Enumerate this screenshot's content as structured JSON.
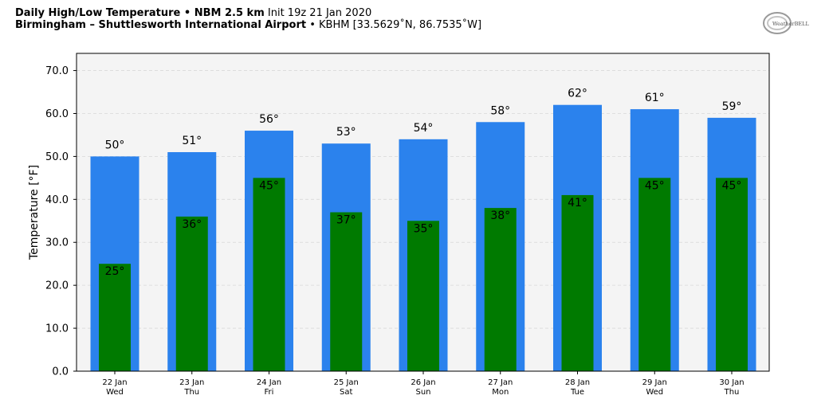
{
  "header": {
    "title_bold": "Daily High/Low Temperature • NBM 2.5 km",
    "title_init": "Init 19z 21 Jan 2020",
    "subtitle_bold": "Birmingham – Shuttlesworth International Airport",
    "subtitle_rest": "• KBHM [33.5629˚N, 86.7535˚W]"
  },
  "logo": {
    "text": "WeatherBELL"
  },
  "colors": {
    "high": "#2b82ed",
    "low": "#007a00",
    "plot_bg": "#f4f4f4"
  },
  "chart_data": {
    "type": "bar",
    "ylabel": "Temperature [°F]",
    "ylim": [
      0,
      74
    ],
    "yticks": [
      "0.0",
      "10.0",
      "20.0",
      "30.0",
      "40.0",
      "50.0",
      "60.0",
      "70.0"
    ],
    "grid": true,
    "categories": [
      {
        "date": "22 Jan",
        "day": "Wed"
      },
      {
        "date": "23 Jan",
        "day": "Thu"
      },
      {
        "date": "24 Jan",
        "day": "Fri"
      },
      {
        "date": "25 Jan",
        "day": "Sat"
      },
      {
        "date": "26 Jan",
        "day": "Sun"
      },
      {
        "date": "27 Jan",
        "day": "Mon"
      },
      {
        "date": "28 Jan",
        "day": "Tue"
      },
      {
        "date": "29 Jan",
        "day": "Wed"
      },
      {
        "date": "30 Jan",
        "day": "Thu"
      }
    ],
    "series": [
      {
        "values": [
          50,
          51,
          56,
          53,
          54,
          58,
          62,
          61,
          59
        ],
        "labels": [
          "50°",
          "51°",
          "56°",
          "53°",
          "54°",
          "58°",
          "62°",
          "61°",
          "59°"
        ]
      },
      {
        "values": [
          25,
          36,
          45,
          37,
          35,
          38,
          41,
          45,
          45
        ],
        "labels": [
          "25°",
          "36°",
          "45°",
          "37°",
          "35°",
          "38°",
          "41°",
          "45°",
          "45°"
        ]
      }
    ]
  }
}
